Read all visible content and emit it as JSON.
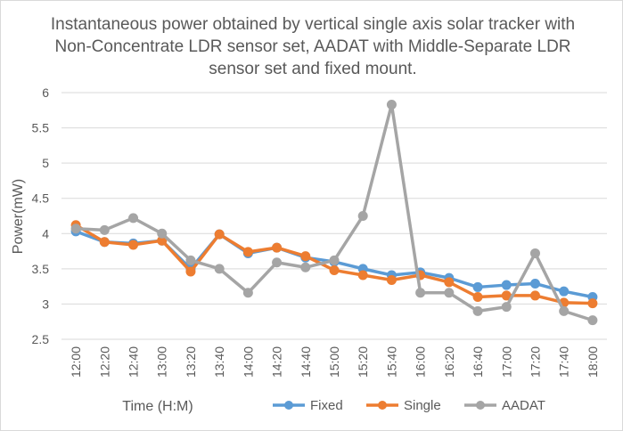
{
  "chart_data": {
    "type": "line",
    "title": "Instantaneous power obtained by vertical single axis solar tracker with Non-Concentrate LDR sensor set, AADAT with Middle-Separate LDR sensor set and fixed mount.",
    "xlabel": "Time (H:M)",
    "ylabel": "Power(mW)",
    "ylim": [
      2.5,
      6
    ],
    "yticks": [
      "2.5",
      "3",
      "3.5",
      "4",
      "4.5",
      "5",
      "5.5",
      "6"
    ],
    "grid": true,
    "legend_position": "bottom",
    "categories": [
      "12:00",
      "12:20",
      "12:40",
      "13:00",
      "13:20",
      "13:40",
      "14:00",
      "14:20",
      "14:40",
      "15:00",
      "15:20",
      "15:40",
      "16:00",
      "16:20",
      "16:40",
      "17:00",
      "17:20",
      "17:40",
      "18:00"
    ],
    "series": [
      {
        "name": "Fixed",
        "color": "#5b9bd5",
        "values": [
          4.03,
          3.88,
          3.86,
          3.9,
          3.5,
          3.99,
          3.72,
          3.8,
          3.66,
          3.6,
          3.5,
          3.41,
          3.45,
          3.37,
          3.24,
          3.27,
          3.29,
          3.18,
          3.1
        ]
      },
      {
        "name": "Single",
        "color": "#ed7d31",
        "values": [
          4.12,
          3.88,
          3.84,
          3.9,
          3.46,
          3.99,
          3.74,
          3.8,
          3.68,
          3.48,
          3.41,
          3.34,
          3.41,
          3.31,
          3.1,
          3.12,
          3.12,
          3.02,
          3.01
        ]
      },
      {
        "name": "AADAT",
        "color": "#a5a5a5",
        "values": [
          4.07,
          4.05,
          4.22,
          4.0,
          3.62,
          3.5,
          3.16,
          3.59,
          3.52,
          3.62,
          4.25,
          5.83,
          3.16,
          3.16,
          2.9,
          2.96,
          3.72,
          2.9,
          2.77
        ]
      }
    ]
  }
}
